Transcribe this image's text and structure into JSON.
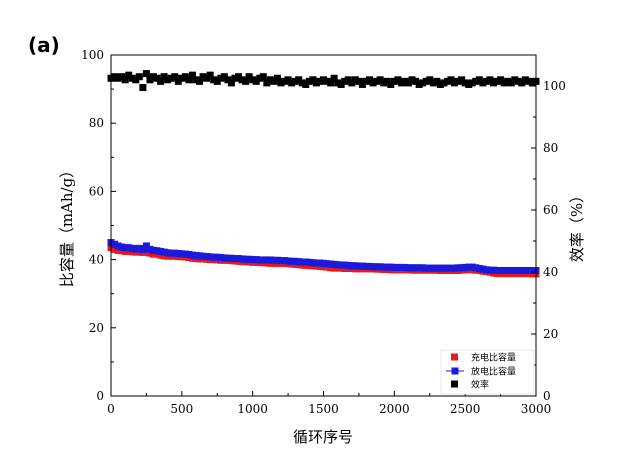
{
  "panel_label": "(a)",
  "chart_data": {
    "type": "scatter",
    "x": [
      0,
      25,
      50,
      75,
      100,
      125,
      150,
      175,
      200,
      225,
      250,
      275,
      300,
      325,
      350,
      375,
      400,
      425,
      450,
      475,
      500,
      525,
      550,
      575,
      600,
      625,
      650,
      675,
      700,
      725,
      750,
      775,
      800,
      825,
      850,
      875,
      900,
      925,
      950,
      975,
      1000,
      1025,
      1050,
      1075,
      1100,
      1125,
      1150,
      1175,
      1200,
      1225,
      1250,
      1275,
      1300,
      1325,
      1350,
      1375,
      1400,
      1425,
      1450,
      1475,
      1500,
      1525,
      1550,
      1575,
      1600,
      1625,
      1650,
      1675,
      1700,
      1725,
      1750,
      1775,
      1800,
      1825,
      1850,
      1875,
      1900,
      1925,
      1950,
      1975,
      2000,
      2025,
      2050,
      2075,
      2100,
      2125,
      2150,
      2175,
      2200,
      2225,
      2250,
      2275,
      2300,
      2325,
      2350,
      2375,
      2400,
      2425,
      2450,
      2475,
      2500,
      2525,
      2550,
      2575,
      2600,
      2625,
      2650,
      2675,
      2700,
      2725,
      2750,
      2775,
      2800,
      2825,
      2850,
      2875,
      2900,
      2925,
      2950,
      2975,
      3000
    ],
    "series": [
      {
        "name": "充电比容量",
        "axis": "left",
        "color": "#e8191c",
        "values": [
          43.5,
          43.0,
          42.7,
          42.6,
          42.4,
          42.4,
          42.3,
          42.2,
          42.2,
          42.1,
          42.2,
          41.9,
          41.6,
          41.6,
          41.3,
          41.1,
          41.0,
          41.0,
          41.1,
          40.9,
          40.8,
          40.8,
          40.6,
          40.4,
          40.3,
          40.2,
          40.2,
          40.1,
          40.0,
          40.0,
          39.9,
          39.8,
          39.8,
          39.8,
          39.7,
          39.6,
          39.5,
          39.4,
          39.4,
          39.3,
          39.2,
          39.2,
          39.1,
          39.1,
          39.0,
          38.9,
          38.9,
          38.9,
          38.9,
          38.9,
          38.8,
          38.7,
          38.6,
          38.5,
          38.4,
          38.3,
          38.3,
          38.2,
          38.1,
          38.0,
          37.9,
          37.8,
          37.6,
          37.5,
          37.5,
          37.5,
          37.4,
          37.4,
          37.4,
          37.3,
          37.3,
          37.3,
          37.3,
          37.3,
          37.3,
          37.2,
          37.2,
          37.1,
          37.1,
          37.0,
          37.0,
          37.0,
          37.0,
          37.0,
          37.0,
          36.9,
          36.9,
          36.9,
          36.9,
          36.9,
          36.9,
          36.9,
          36.9,
          36.8,
          36.8,
          36.8,
          36.8,
          36.8,
          36.8,
          36.9,
          37.0,
          37.0,
          37.0,
          36.9,
          36.8,
          36.6,
          36.5,
          36.3,
          36.1,
          35.9,
          35.9,
          35.9,
          35.9,
          35.9,
          35.9,
          35.9,
          35.9,
          35.9,
          35.9,
          35.8,
          35.8
        ]
      },
      {
        "name": "放电比容量",
        "axis": "left",
        "color": "#1a1adb",
        "values": [
          45.0,
          44.5,
          44.0,
          43.7,
          43.5,
          43.5,
          43.3,
          43.1,
          43.3,
          43.0,
          44.0,
          43.0,
          42.7,
          42.6,
          42.4,
          42.2,
          42.0,
          41.9,
          41.9,
          41.8,
          41.7,
          41.6,
          41.5,
          41.3,
          41.2,
          41.1,
          41.0,
          40.9,
          40.8,
          40.7,
          40.7,
          40.6,
          40.5,
          40.4,
          40.4,
          40.3,
          40.3,
          40.2,
          40.1,
          40.1,
          40.0,
          40.0,
          39.9,
          39.9,
          39.9,
          39.9,
          39.8,
          39.8,
          39.7,
          39.7,
          39.6,
          39.5,
          39.5,
          39.4,
          39.3,
          39.3,
          39.2,
          39.1,
          39.0,
          39.0,
          38.9,
          38.8,
          38.7,
          38.6,
          38.5,
          38.4,
          38.4,
          38.3,
          38.2,
          38.2,
          38.1,
          38.1,
          38.0,
          38.0,
          37.9,
          37.9,
          37.9,
          37.8,
          37.8,
          37.8,
          37.7,
          37.7,
          37.7,
          37.7,
          37.6,
          37.6,
          37.6,
          37.6,
          37.6,
          37.5,
          37.5,
          37.5,
          37.5,
          37.5,
          37.5,
          37.5,
          37.5,
          37.5,
          37.6,
          37.6,
          37.7,
          37.8,
          37.8,
          37.6,
          37.4,
          37.2,
          37.0,
          36.9,
          36.9,
          36.8,
          36.8,
          36.8,
          36.8,
          36.8,
          36.8,
          36.8,
          36.8,
          36.8,
          36.8,
          36.8,
          36.8
        ]
      },
      {
        "name": "效率",
        "axis": "right",
        "color": "#000000",
        "values": [
          102.5,
          103.0,
          102.5,
          103.0,
          102.0,
          103.5,
          102.5,
          102.0,
          103.0,
          99.5,
          104.0,
          102.0,
          103.0,
          102.5,
          101.5,
          103.0,
          102.0,
          102.5,
          103.0,
          101.5,
          102.5,
          103.0,
          102.0,
          103.5,
          102.0,
          101.5,
          103.0,
          102.5,
          103.5,
          102.0,
          101.5,
          102.5,
          103.0,
          102.0,
          101.0,
          102.5,
          103.0,
          102.0,
          101.5,
          103.0,
          102.0,
          101.5,
          102.5,
          103.0,
          101.0,
          102.0,
          101.5,
          102.5,
          101.0,
          101.5,
          102.0,
          101.0,
          101.5,
          102.0,
          101.0,
          100.5,
          101.5,
          102.0,
          101.0,
          101.5,
          102.0,
          101.5,
          101.0,
          102.5,
          101.0,
          100.5,
          101.5,
          102.0,
          101.0,
          102.0,
          101.5,
          100.5,
          101.5,
          102.0,
          101.0,
          101.5,
          102.0,
          101.0,
          101.5,
          100.5,
          101.5,
          102.0,
          101.0,
          101.5,
          101.0,
          102.0,
          101.5,
          100.5,
          101.0,
          101.5,
          102.0,
          101.0,
          101.5,
          100.5,
          101.0,
          101.5,
          102.0,
          101.0,
          101.5,
          102.0,
          101.0,
          100.5,
          101.0,
          101.5,
          102.0,
          101.0,
          101.5,
          102.0,
          101.0,
          101.5,
          102.0,
          101.0,
          101.5,
          101.0,
          102.0,
          101.5,
          101.0,
          102.0,
          101.5,
          101.0,
          101.5
        ]
      }
    ],
    "xlabel": "循环序号",
    "ylabel_left": "比容量（mAh/g）",
    "ylabel_right": "效率（%）",
    "xlim": [
      0,
      3000
    ],
    "ylim_left": [
      0,
      100
    ],
    "ylim_right": [
      0,
      110
    ],
    "xticks": [
      0,
      500,
      1000,
      1500,
      2000,
      2500,
      3000
    ],
    "yticks_left": [
      0,
      20,
      40,
      60,
      80,
      100
    ],
    "yticks_right": [
      0,
      20,
      40,
      60,
      80,
      100
    ],
    "grid": false,
    "legend_position": "bottom-right"
  }
}
